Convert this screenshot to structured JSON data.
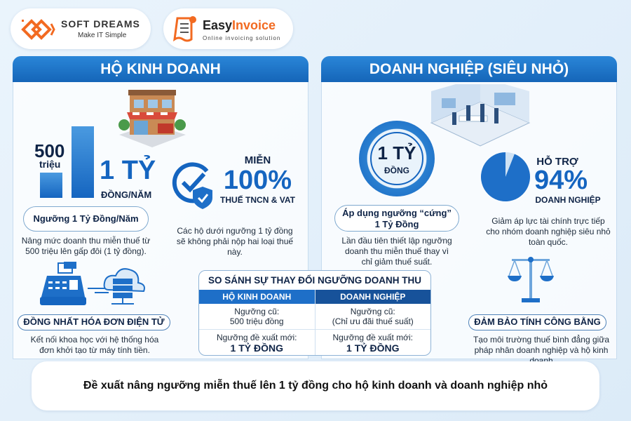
{
  "logos": {
    "softdreams": {
      "name": "SOFT DREAMS",
      "tagline": "Make IT Simple"
    },
    "easyinvoice": {
      "name_a": "Easy",
      "name_b": "Invoice",
      "tagline": "Online invoicing solution"
    }
  },
  "left": {
    "title": "HỘ KINH DOANH",
    "old_value": "500",
    "old_unit": "triệu",
    "new_value": "1 TỶ",
    "new_unit": "ĐỒNG/NĂM",
    "threshold_label": "Ngưỡng 1 Tỷ Đồng/Năm",
    "threshold_desc": "Nâng mức doanh thu miễn thuế từ 500 triệu lên gấp đôi (1 tỷ đồng).",
    "exempt_label": "MIỄN",
    "exempt_value": "100%",
    "exempt_taxes": "THUẾ TNCN & VAT",
    "exempt_desc": "Các hộ dưới ngưỡng 1 tỷ đồng sẽ không phải nộp hai loại thuế này.",
    "invoice_tag": "ĐỒNG NHẤT HÓA ĐƠN ĐIỆN TỬ",
    "invoice_desc": "Kết nối khoa học với hệ thống hóa đơn khởi tạo từ máy tính tiền."
  },
  "right": {
    "title": "DOANH NGHIỆP (SIÊU NHỎ)",
    "badge_value": "1 TỶ",
    "badge_unit": "ĐỒNG",
    "rule_label_1": "Áp dụng ngưỡng “cứng”",
    "rule_label_2": "1 Tỷ Đồng",
    "rule_desc": "Lần đầu tiên thiết lập ngưỡng doanh thu miễn thuế thay vì chỉ giảm thuế suất.",
    "support_label": "HỖ TRỢ",
    "support_value": "94%",
    "support_unit": "DOANH NGHIỆP",
    "support_percent": 94,
    "support_desc": "Giảm áp lực tài chính trực tiếp cho nhóm doanh nghiệp siêu nhỏ toàn quốc.",
    "fair_tag": "ĐẢM BẢO TÍNH CÔNG BẰNG",
    "fair_desc": "Tạo môi trường thuế bình đẳng giữa pháp nhân doanh nghiệp và hộ kinh doanh"
  },
  "comparison": {
    "title": "SO SÁNH SỰ THAY ĐỔI NGƯỠNG DOANH THU",
    "headers": [
      "HỘ KINH DOANH",
      "DOANH NGHIỆP"
    ],
    "rows": [
      [
        {
          "label": "Ngưỡng cũ:",
          "value": "500 triệu đồng"
        },
        {
          "label": "Ngưỡng cũ:",
          "value": "(Chỉ ưu đãi thuế suất)"
        }
      ],
      [
        {
          "label": "Ngưỡng đề xuất mới:",
          "value": "1 TỶ ĐỒNG"
        },
        {
          "label": "Ngưỡng đề xuất mới:",
          "value": "1 TỶ ĐỒNG"
        }
      ]
    ]
  },
  "banner": "Đề xuất nâng ngưỡng miễn thuế lên 1 tỷ đồng cho hộ kinh doanh và doanh nghiệp nhỏ",
  "colors": {
    "primary": "#1565c0",
    "accent": "#f26a21",
    "navy": "#0f2447"
  }
}
